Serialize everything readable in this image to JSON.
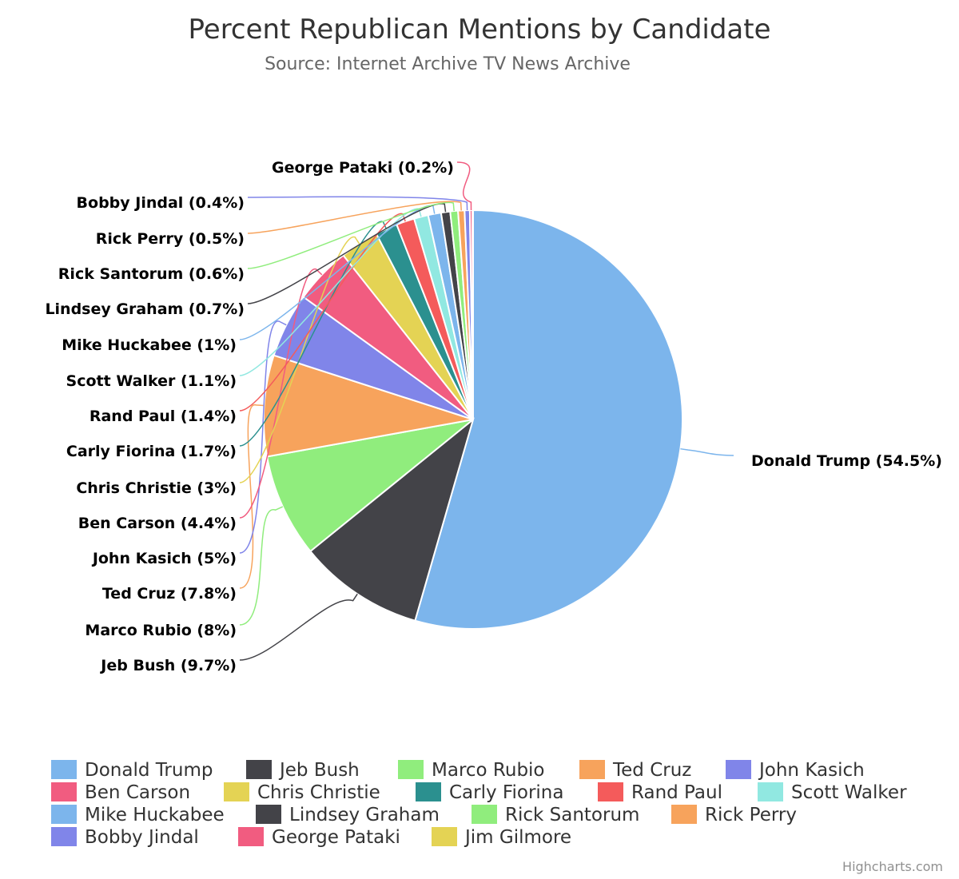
{
  "chart_data": {
    "type": "pie",
    "title": "Percent Republican Mentions by Candidate",
    "subtitle": "Source: Internet Archive TV News Archive",
    "credits": "Highcharts.com",
    "legend_placement": "bottom",
    "slices": [
      {
        "name": "Donald Trump",
        "value": 54.5,
        "label": "Donald Trump (54.5%)",
        "color": "#7cb5ec"
      },
      {
        "name": "Jeb Bush",
        "value": 9.7,
        "label": "Jeb Bush (9.7%)",
        "color": "#434348"
      },
      {
        "name": "Marco Rubio",
        "value": 8,
        "label": "Marco Rubio (8%)",
        "color": "#90ed7d"
      },
      {
        "name": "Ted Cruz",
        "value": 7.8,
        "label": "Ted Cruz (7.8%)",
        "color": "#f7a35c"
      },
      {
        "name": "John Kasich",
        "value": 5,
        "label": "John Kasich (5%)",
        "color": "#8085e9"
      },
      {
        "name": "Ben Carson",
        "value": 4.4,
        "label": "Ben Carson (4.4%)",
        "color": "#f15c80"
      },
      {
        "name": "Chris Christie",
        "value": 3,
        "label": "Chris Christie (3%)",
        "color": "#e4d354"
      },
      {
        "name": "Carly Fiorina",
        "value": 1.7,
        "label": "Carly Fiorina (1.7%)",
        "color": "#2b908f"
      },
      {
        "name": "Rand Paul",
        "value": 1.4,
        "label": "Rand Paul (1.4%)",
        "color": "#f45b5b"
      },
      {
        "name": "Scott Walker",
        "value": 1.1,
        "label": "Scott Walker (1.1%)",
        "color": "#91e8e1"
      },
      {
        "name": "Mike Huckabee",
        "value": 1,
        "label": "Mike Huckabee (1%)",
        "color": "#7cb5ec"
      },
      {
        "name": "Lindsey Graham",
        "value": 0.7,
        "label": "Lindsey Graham (0.7%)",
        "color": "#434348"
      },
      {
        "name": "Rick Santorum",
        "value": 0.6,
        "label": "Rick Santorum (0.6%)",
        "color": "#90ed7d"
      },
      {
        "name": "Rick Perry",
        "value": 0.5,
        "label": "Rick Perry (0.5%)",
        "color": "#f7a35c"
      },
      {
        "name": "Bobby Jindal",
        "value": 0.4,
        "label": "Bobby Jindal (0.4%)",
        "color": "#8085e9"
      },
      {
        "name": "George Pataki",
        "value": 0.2,
        "label": "George Pataki (0.2%)",
        "color": "#f15c80"
      },
      {
        "name": "Jim Gilmore",
        "value": 0.05,
        "label": "",
        "color": "#e4d354"
      }
    ]
  }
}
